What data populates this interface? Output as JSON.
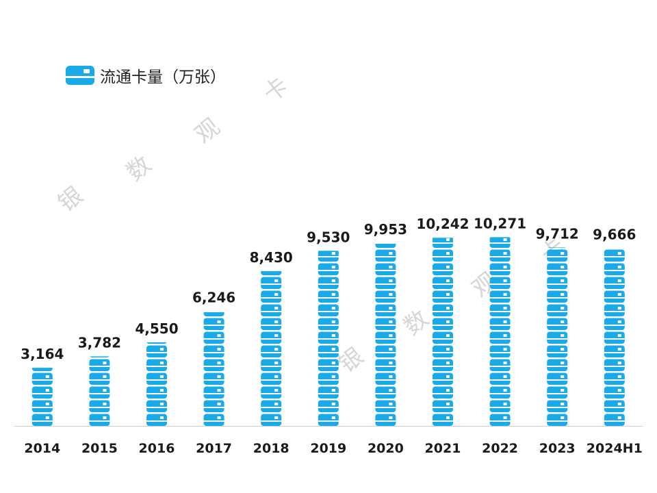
{
  "chart_data": {
    "type": "bar",
    "categories": [
      "2014",
      "2015",
      "2016",
      "2017",
      "2018",
      "2019",
      "2020",
      "2021",
      "2022",
      "2023",
      "2024H1"
    ],
    "series": [
      {
        "name": "流通卡量（万张）",
        "values": [
          3164,
          3782,
          4550,
          6246,
          8430,
          9530,
          9953,
          10242,
          10271,
          9712,
          9666
        ],
        "labels": [
          "3,164",
          "3,782",
          "4,550",
          "6,246",
          "8,430",
          "9,530",
          "9,953",
          "10,242",
          "10,271",
          "9,712",
          "9,666"
        ]
      }
    ],
    "title": "",
    "xlabel": "",
    "ylabel": "",
    "ylim": [
      0,
      11000
    ],
    "grid": false,
    "legend_position": "top-left",
    "bar_style": "stacked card icons",
    "colors": {
      "bar": "#1aaae8",
      "axis": "#cfcfcf",
      "text": "#1a1a1a"
    }
  },
  "legend": {
    "label": "流通卡量（万张）",
    "icon": "credit-card-icon"
  },
  "watermark": {
    "chars": [
      "银",
      "数",
      "观",
      "卡"
    ]
  }
}
